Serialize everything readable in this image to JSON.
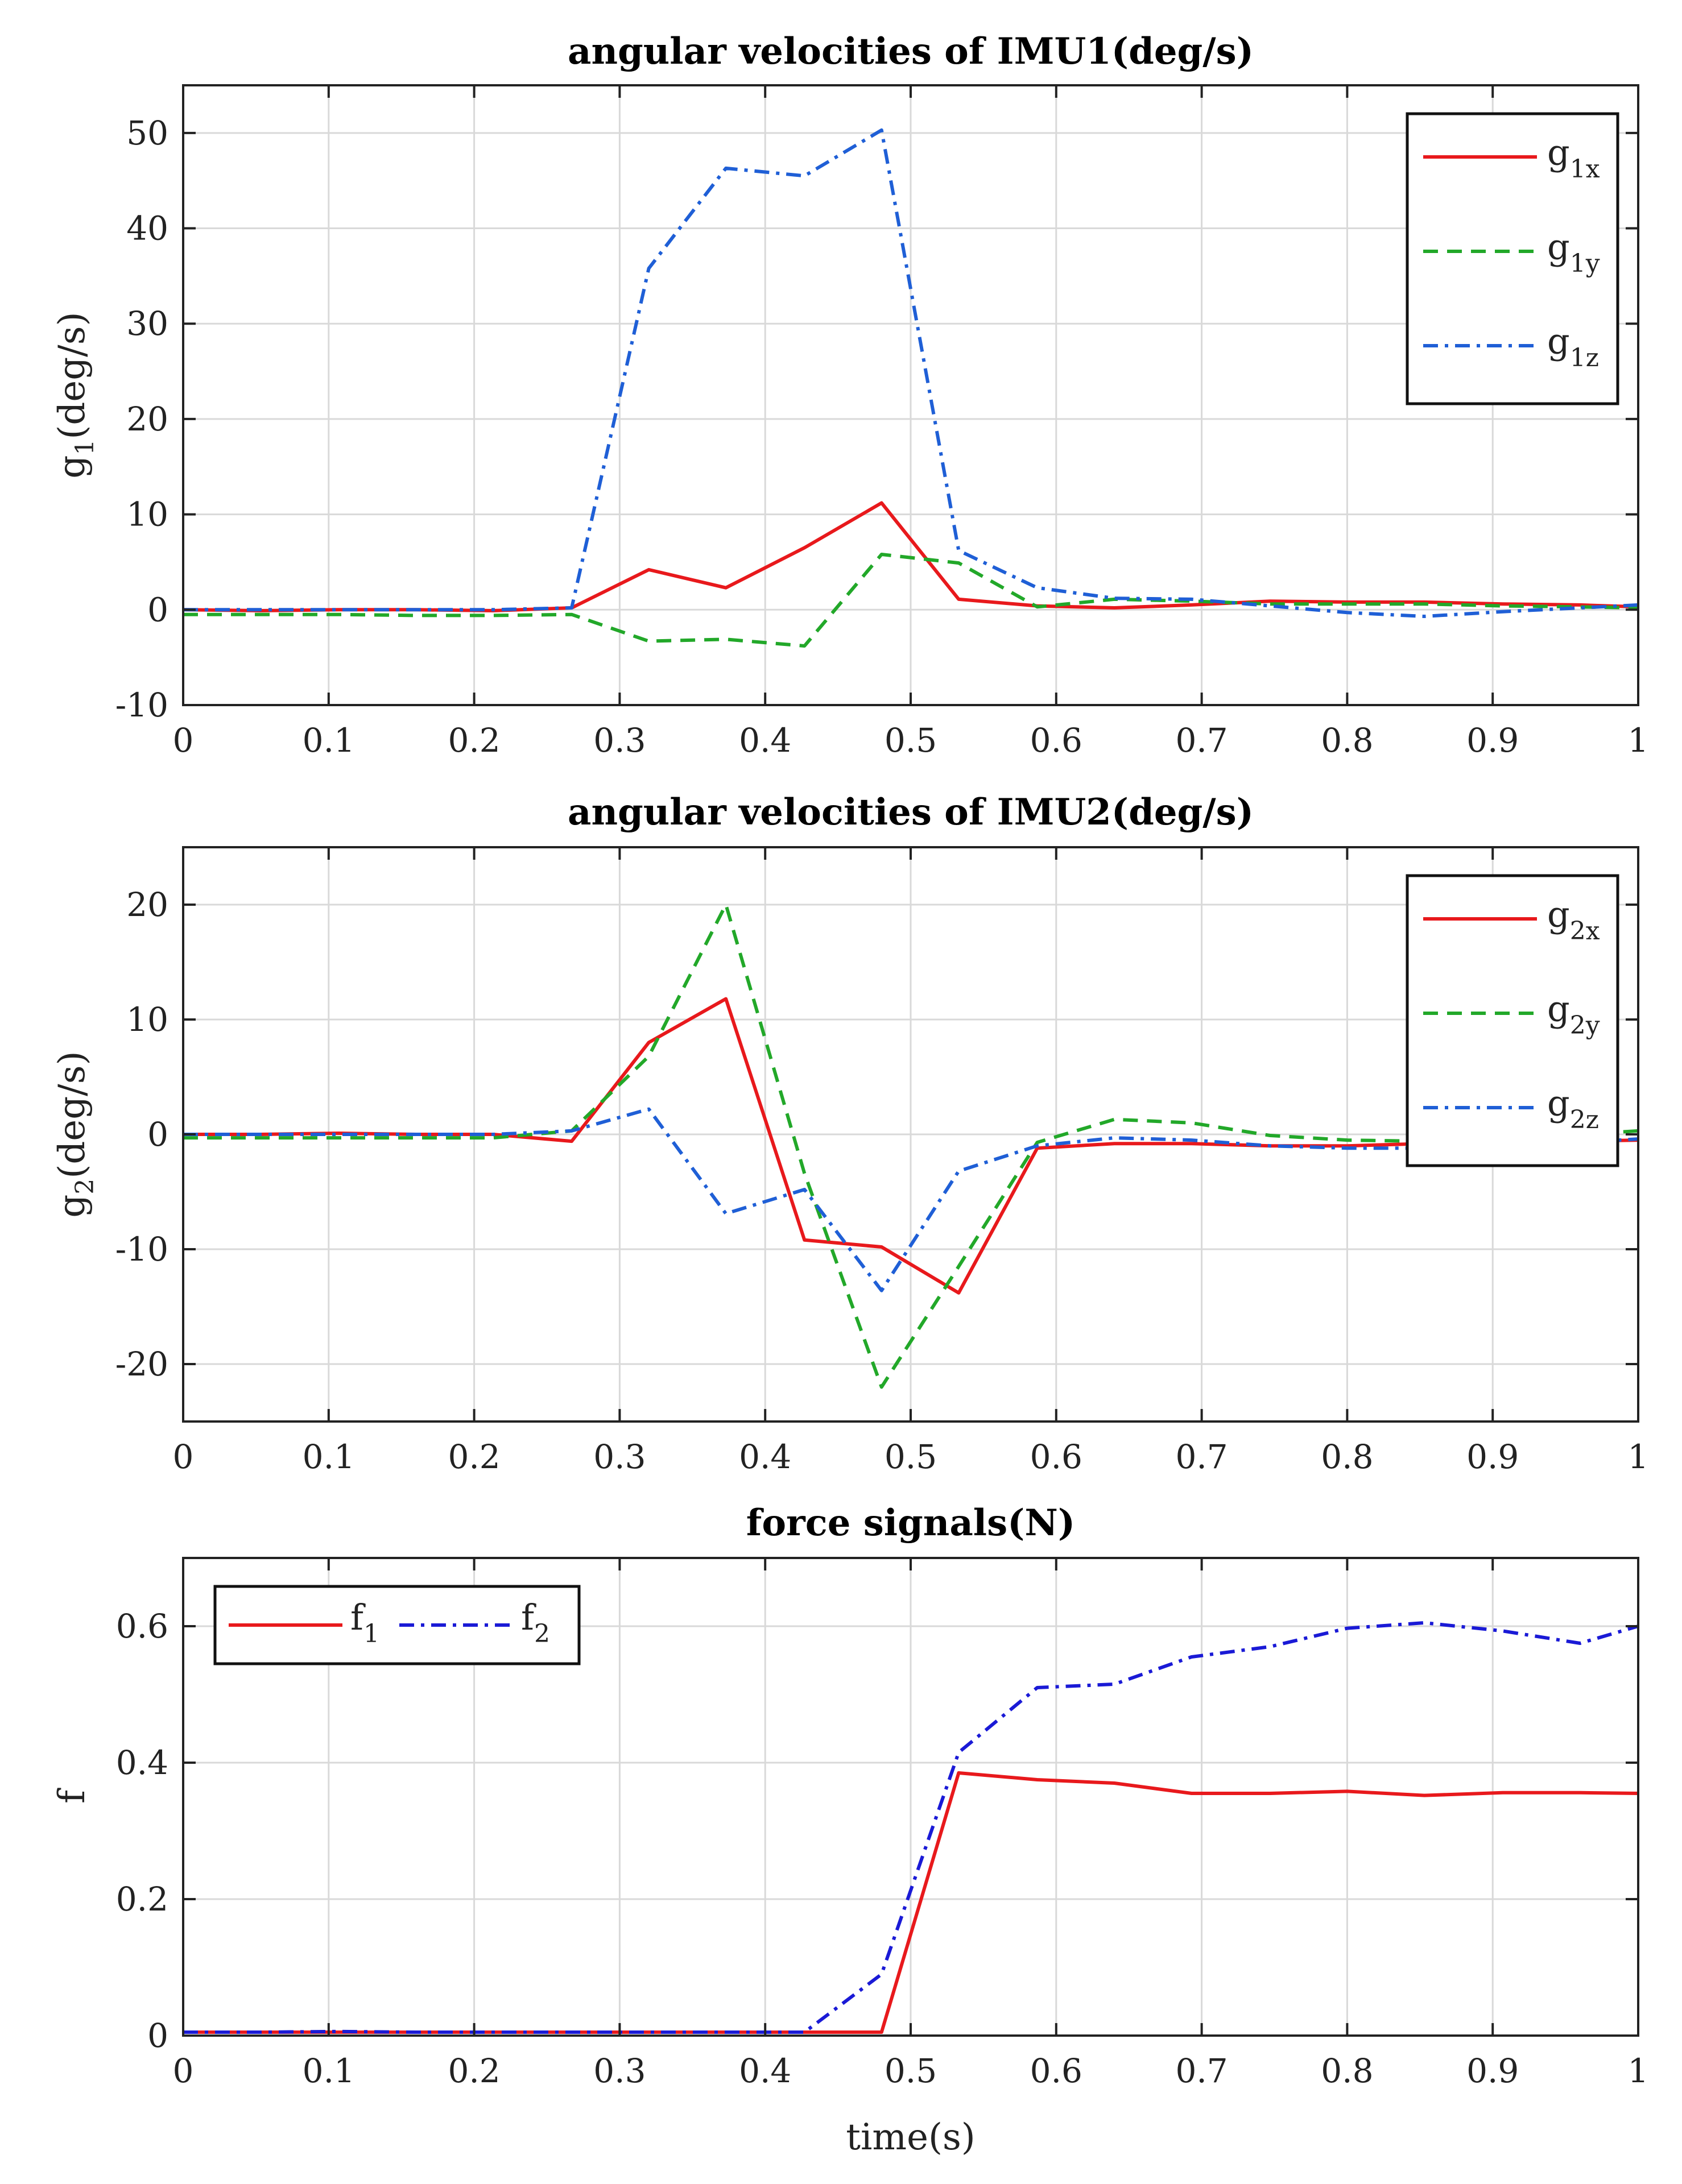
{
  "chart_data": [
    {
      "type": "line",
      "title": "angular velocities of IMU1(deg/s)",
      "ylabel": {
        "base": "g",
        "sub": "1",
        "suffix": "(deg/s)"
      },
      "xlabel": "",
      "xlim": [
        0,
        1
      ],
      "ylim": [
        -10,
        55
      ],
      "xticks": [
        0,
        0.1,
        0.2,
        0.3,
        0.4,
        0.5,
        0.6,
        0.7,
        0.8,
        0.9,
        1
      ],
      "xtick_labels": [
        "0",
        "0.1",
        "0.2",
        "0.3",
        "0.4",
        "0.5",
        "0.6",
        "0.7",
        "0.8",
        "0.9",
        "1"
      ],
      "yticks": [
        -10,
        0,
        10,
        20,
        30,
        40,
        50
      ],
      "ytick_labels": [
        "-10",
        "0",
        "10",
        "20",
        "30",
        "40",
        "50"
      ],
      "grid": true,
      "legend_position": "top-right",
      "legend_layout": "vertical",
      "x": [
        0,
        0.053,
        0.107,
        0.16,
        0.213,
        0.267,
        0.32,
        0.373,
        0.427,
        0.48,
        0.533,
        0.587,
        0.64,
        0.693,
        0.747,
        0.8,
        0.853,
        0.907,
        0.96,
        1.0
      ],
      "series": [
        {
          "name": "g1x",
          "label_base": "g",
          "label_sub": "1x",
          "color": "#e8191c",
          "dash": "solid",
          "values": [
            0,
            -0.1,
            0,
            0,
            -0.1,
            0.2,
            4.2,
            2.3,
            6.5,
            11.2,
            1.1,
            0.4,
            0.2,
            0.5,
            0.9,
            0.8,
            0.8,
            0.6,
            0.5,
            0.3
          ]
        },
        {
          "name": "g1y",
          "label_base": "g",
          "label_sub": "1y",
          "color": "#22a829",
          "dash": "dashed",
          "values": [
            -0.5,
            -0.5,
            -0.5,
            -0.6,
            -0.6,
            -0.5,
            -3.3,
            -3.1,
            -3.8,
            5.8,
            4.9,
            0.3,
            1.1,
            0.9,
            0.6,
            0.6,
            0.6,
            0.4,
            0.3,
            0.2
          ]
        },
        {
          "name": "g1z",
          "label_base": "g",
          "label_sub": "1z",
          "color": "#1f5fd6",
          "dash": "dashdot",
          "values": [
            0,
            0,
            0,
            0,
            0,
            0.2,
            35.8,
            46.3,
            45.5,
            50.3,
            6.2,
            2.3,
            1.2,
            1.1,
            0.4,
            -0.3,
            -0.7,
            -0.2,
            0.2,
            0.5
          ]
        }
      ]
    },
    {
      "type": "line",
      "title": "angular velocities of IMU2(deg/s)",
      "ylabel": {
        "base": "g",
        "sub": "2",
        "suffix": "(deg/s)"
      },
      "xlabel": "",
      "xlim": [
        0,
        1
      ],
      "ylim": [
        -25,
        25
      ],
      "xticks": [
        0,
        0.1,
        0.2,
        0.3,
        0.4,
        0.5,
        0.6,
        0.7,
        0.8,
        0.9,
        1
      ],
      "xtick_labels": [
        "0",
        "0.1",
        "0.2",
        "0.3",
        "0.4",
        "0.5",
        "0.6",
        "0.7",
        "0.8",
        "0.9",
        "1"
      ],
      "yticks": [
        -20,
        -10,
        0,
        10,
        20
      ],
      "ytick_labels": [
        "-20",
        "-10",
        "0",
        "10",
        "20"
      ],
      "grid": true,
      "legend_position": "top-right",
      "legend_layout": "vertical",
      "x": [
        0,
        0.053,
        0.107,
        0.16,
        0.213,
        0.267,
        0.32,
        0.373,
        0.427,
        0.48,
        0.533,
        0.587,
        0.64,
        0.693,
        0.747,
        0.8,
        0.853,
        0.907,
        0.96,
        1.0
      ],
      "series": [
        {
          "name": "g2x",
          "label_base": "g",
          "label_sub": "2x",
          "color": "#e8191c",
          "dash": "solid",
          "values": [
            0,
            0,
            0.1,
            0,
            0,
            -0.6,
            8.0,
            11.8,
            -9.2,
            -9.8,
            -13.8,
            -1.2,
            -0.8,
            -0.8,
            -1.0,
            -1.0,
            -0.8,
            -0.8,
            -0.6,
            -0.5
          ]
        },
        {
          "name": "g2y",
          "label_base": "g",
          "label_sub": "2y",
          "color": "#22a829",
          "dash": "dashed",
          "values": [
            -0.3,
            -0.3,
            -0.3,
            -0.3,
            -0.3,
            0.3,
            6.8,
            20.0,
            -3.4,
            -22.0,
            -11.5,
            -0.7,
            1.3,
            1.0,
            -0.1,
            -0.5,
            -0.6,
            -0.4,
            0,
            0.3
          ]
        },
        {
          "name": "g2z",
          "label_base": "g",
          "label_sub": "2z",
          "color": "#1f5fd6",
          "dash": "dashdot",
          "values": [
            0,
            0,
            0,
            0,
            0,
            0.3,
            2.2,
            -6.9,
            -4.8,
            -13.6,
            -3.2,
            -1.0,
            -0.3,
            -0.5,
            -1.0,
            -1.2,
            -1.2,
            -1.0,
            -0.7,
            -0.4
          ]
        }
      ]
    },
    {
      "type": "line",
      "title": "force signals(N)",
      "ylabel": {
        "base": "f",
        "sub": "",
        "suffix": ""
      },
      "xlabel": "time(s)",
      "xlim": [
        0,
        1
      ],
      "ylim": [
        0,
        0.7
      ],
      "xticks": [
        0,
        0.1,
        0.2,
        0.3,
        0.4,
        0.5,
        0.6,
        0.7,
        0.8,
        0.9,
        1
      ],
      "xtick_labels": [
        "0",
        "0.1",
        "0.2",
        "0.3",
        "0.4",
        "0.5",
        "0.6",
        "0.7",
        "0.8",
        "0.9",
        "1"
      ],
      "yticks": [
        0,
        0.2,
        0.4,
        0.6
      ],
      "ytick_labels": [
        "0",
        "0.2",
        "0.4",
        "0.6"
      ],
      "grid": true,
      "legend_position": "top-left",
      "legend_layout": "horizontal",
      "x": [
        0,
        0.053,
        0.107,
        0.16,
        0.213,
        0.267,
        0.32,
        0.373,
        0.427,
        0.48,
        0.533,
        0.587,
        0.64,
        0.693,
        0.747,
        0.8,
        0.853,
        0.907,
        0.96,
        1.0
      ],
      "series": [
        {
          "name": "f1",
          "label_base": "f",
          "label_sub": "1",
          "color": "#e8191c",
          "dash": "solid",
          "values": [
            0.005,
            0.005,
            0.005,
            0.005,
            0.005,
            0.005,
            0.005,
            0.005,
            0.005,
            0.005,
            0.385,
            0.375,
            0.37,
            0.355,
            0.355,
            0.358,
            0.352,
            0.356,
            0.356,
            0.355
          ]
        },
        {
          "name": "f2",
          "label_base": "f",
          "label_sub": "2",
          "color": "#1a1ad6",
          "dash": "dashdot",
          "values": [
            0.005,
            0.005,
            0.006,
            0.005,
            0.005,
            0.005,
            0.005,
            0.005,
            0.005,
            0.09,
            0.415,
            0.51,
            0.515,
            0.555,
            0.57,
            0.597,
            0.605,
            0.593,
            0.575,
            0.6
          ]
        }
      ]
    }
  ]
}
